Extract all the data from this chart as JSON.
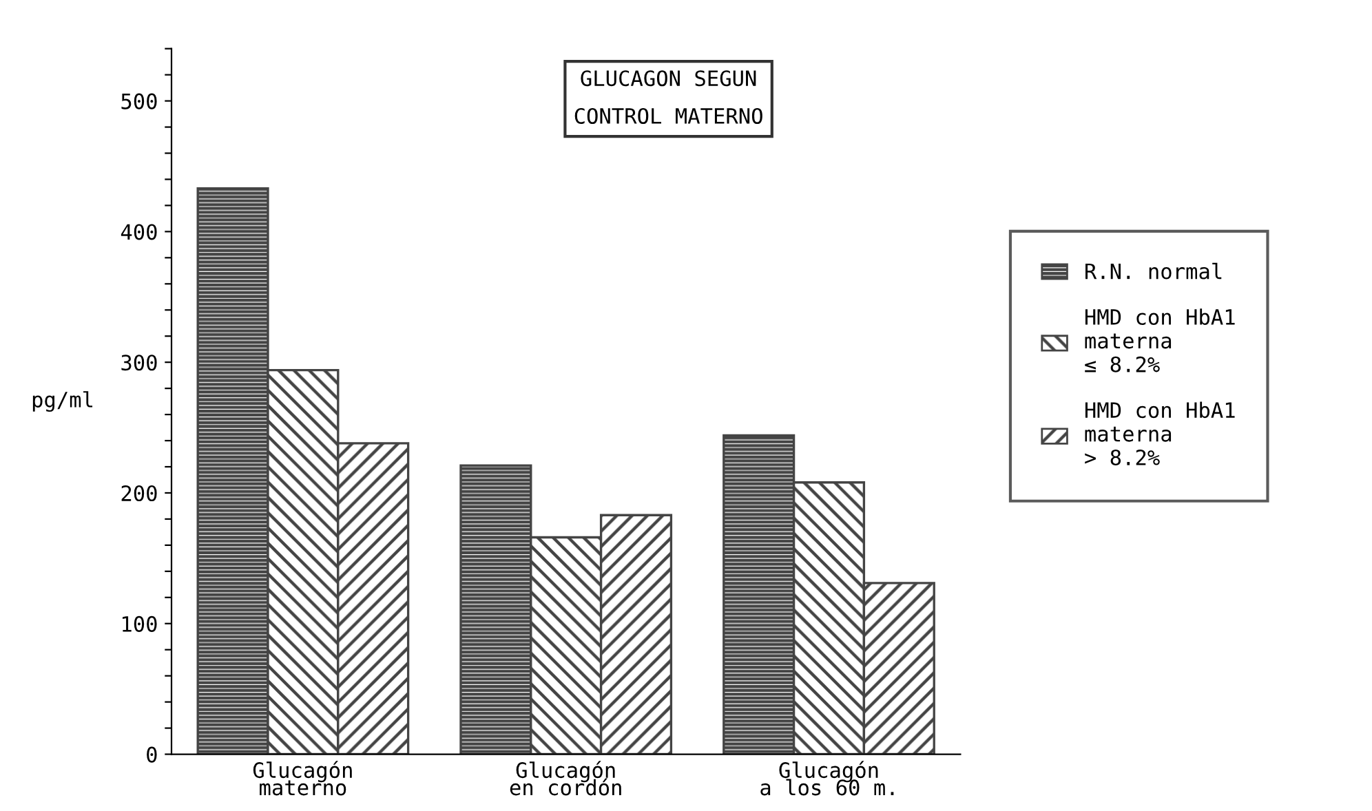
{
  "chart_data": {
    "type": "bar",
    "title": "GLUCAGON SEGUN\n\nCONTROL MATERNO",
    "ylabel": "pg/ml",
    "categories": [
      "Glucagón\nmaterno",
      "Glucagón\nen cordón",
      "Glucagón\na los 60 m."
    ],
    "series": [
      {
        "name": "R.N. normal",
        "color": "#444444",
        "values": [
          433,
          221,
          244
        ]
      },
      {
        "name": "HMD con HbA1\nmaterna\n≤ 8.2%",
        "color": "#444444",
        "values": [
          294,
          166,
          208
        ]
      },
      {
        "name": "HMD con HbA1\nmaterna\n> 8.2%",
        "color": "#444444",
        "values": [
          238,
          183,
          131
        ]
      }
    ],
    "ylim": [
      0,
      540
    ],
    "yticks": [
      0,
      {
        "value": 20,
        "label": null
      },
      {
        "value": 40,
        "label": null
      },
      {
        "value": 60,
        "label": null
      },
      {
        "value": 80,
        "label": null
      },
      100,
      {
        "value": 120,
        "label": null
      },
      {
        "value": 140,
        "label": null
      },
      {
        "value": 160,
        "label": null
      },
      {
        "value": 180,
        "label": null
      },
      200,
      {
        "value": 220,
        "label": null
      },
      {
        "value": 240,
        "label": null
      },
      {
        "value": 260,
        "label": null
      },
      {
        "value": 280,
        "label": null
      },
      300,
      {
        "value": 320,
        "label": null
      },
      {
        "value": 340,
        "label": null
      },
      {
        "value": 360,
        "label": null
      },
      {
        "value": 380,
        "label": null
      },
      400,
      {
        "value": 420,
        "label": null
      },
      {
        "value": 440,
        "label": null
      },
      {
        "value": 460,
        "label": null
      },
      {
        "value": 480,
        "label": null
      },
      500,
      {
        "value": 520,
        "label": null
      },
      {
        "value": 540,
        "label": null
      }
    ],
    "grid": false,
    "legend": "right"
  }
}
